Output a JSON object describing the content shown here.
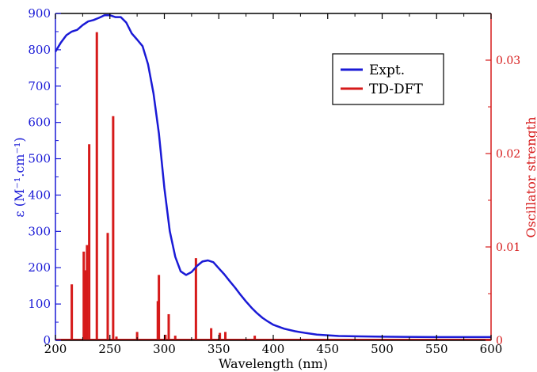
{
  "chart_data": {
    "type": "line",
    "xlabel": "Wavelength (nm)",
    "ylabel_left": "ε (M⁻¹.cm⁻¹)",
    "ylabel_right": "Oscillator strength",
    "xlim": [
      200,
      600
    ],
    "ylim_left": [
      0,
      900
    ],
    "ylim_right": [
      0,
      0.035
    ],
    "x_ticks": [
      "200",
      "250",
      "300",
      "350",
      "400",
      "450",
      "500",
      "550",
      "600"
    ],
    "y_left_ticks": [
      "0",
      "100",
      "200",
      "300",
      "400",
      "500",
      "600",
      "700",
      "800",
      "900"
    ],
    "y_right_ticks": [
      "0",
      "0.01",
      "0.02",
      "0.03"
    ],
    "grid": false,
    "legend_position": "top-right",
    "colors": {
      "expt": "#1a1ad6",
      "tddft": "#d61a1a",
      "left_axis": "#1a1ad6",
      "right_axis": "#d61a1a",
      "frame": "#000000"
    },
    "series": [
      {
        "name": "Expt.",
        "kind": "line",
        "x": [
          200,
          205,
          210,
          215,
          220,
          225,
          230,
          235,
          240,
          245,
          250,
          255,
          260,
          265,
          270,
          275,
          280,
          285,
          290,
          295,
          300,
          305,
          310,
          315,
          320,
          325,
          330,
          335,
          340,
          345,
          350,
          355,
          360,
          365,
          370,
          375,
          380,
          385,
          390,
          395,
          400,
          410,
          420,
          430,
          440,
          450,
          460,
          480,
          500,
          550,
          600
        ],
        "y": [
          795,
          820,
          840,
          850,
          855,
          868,
          878,
          882,
          888,
          895,
          895,
          890,
          890,
          875,
          845,
          828,
          810,
          760,
          680,
          570,
          420,
          300,
          230,
          190,
          180,
          188,
          205,
          217,
          220,
          215,
          198,
          182,
          163,
          145,
          125,
          107,
          90,
          75,
          62,
          52,
          43,
          32,
          25,
          20,
          16,
          14,
          12,
          11,
          10,
          9,
          9
        ]
      },
      {
        "name": "TD-DFT",
        "kind": "stick",
        "x": [
          215,
          226,
          227,
          229,
          231,
          238,
          248,
          253,
          256,
          275,
          294,
          295,
          301,
          304,
          310,
          329,
          343,
          351,
          356,
          383
        ],
        "y": [
          0.006,
          0.0095,
          0.0075,
          0.0102,
          0.021,
          0.033,
          0.0115,
          0.024,
          0.0004,
          0.0009,
          0.0042,
          0.007,
          0.0006,
          0.0028,
          0.0005,
          0.0088,
          0.0013,
          0.0008,
          0.0009,
          0.0005
        ]
      }
    ]
  }
}
